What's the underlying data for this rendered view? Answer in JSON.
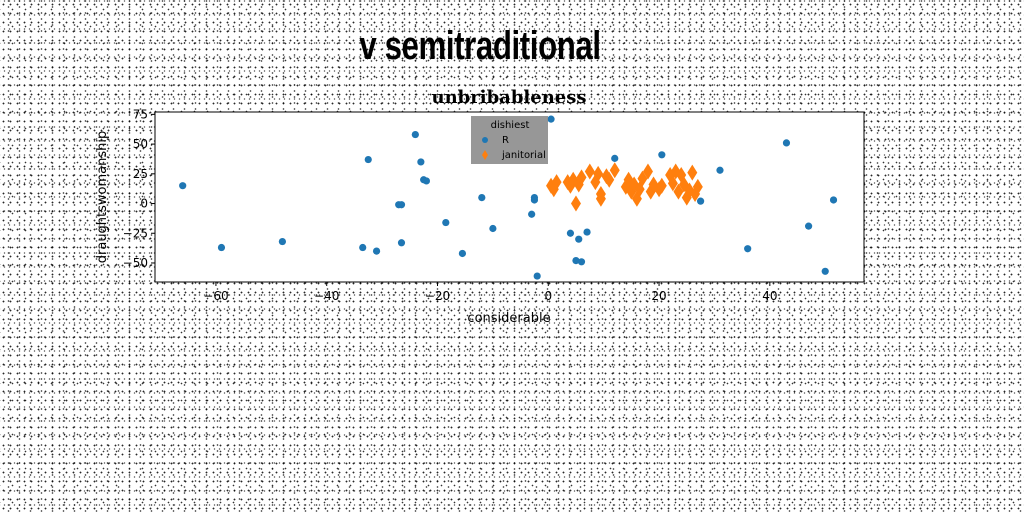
{
  "figure": {
    "suptitle": "v semitraditional"
  },
  "chart_data": {
    "type": "scatter",
    "title": "unbribableness",
    "xlabel": "considerable",
    "ylabel": "draughtswomanship",
    "xlim": [
      -71,
      57
    ],
    "ylim": [
      -66,
      77
    ],
    "xticks": [
      -60,
      -40,
      -20,
      0,
      20,
      40
    ],
    "yticks": [
      -50,
      -25,
      0,
      25,
      50,
      75
    ],
    "legend": {
      "title": "dishiest",
      "placement": "top-center",
      "background": "#8c8c8c"
    },
    "series": [
      {
        "name": "R",
        "marker": "circle",
        "color": "#1f77b4",
        "points": [
          [
            -66,
            15
          ],
          [
            -59,
            -37
          ],
          [
            -48,
            -32
          ],
          [
            -32.5,
            37
          ],
          [
            -33.5,
            -37
          ],
          [
            -31,
            -40
          ],
          [
            -27,
            -1
          ],
          [
            -26.5,
            -1
          ],
          [
            -26.5,
            -33
          ],
          [
            -24,
            58
          ],
          [
            -23,
            35
          ],
          [
            -22.5,
            20
          ],
          [
            -22,
            19
          ],
          [
            -18.5,
            -16
          ],
          [
            -15.5,
            -42
          ],
          [
            -12,
            5
          ],
          [
            -10,
            -21
          ],
          [
            -3,
            -9
          ],
          [
            -2.5,
            3
          ],
          [
            -2.5,
            5
          ],
          [
            -2,
            -61
          ],
          [
            0.5,
            71
          ],
          [
            4,
            -25
          ],
          [
            5,
            -48
          ],
          [
            5.5,
            -30
          ],
          [
            6,
            -49
          ],
          [
            7,
            -24
          ],
          [
            12,
            38
          ],
          [
            20.5,
            41
          ],
          [
            27.5,
            2
          ],
          [
            31,
            28
          ],
          [
            36,
            -38
          ],
          [
            43,
            51
          ],
          [
            47,
            -19
          ],
          [
            50,
            -57
          ],
          [
            51.5,
            3
          ]
        ]
      },
      {
        "name": "janitorial",
        "marker": "thin_diamond",
        "color": "#ff7f0e",
        "points": [
          [
            0.5,
            15
          ],
          [
            1,
            12
          ],
          [
            1.5,
            18
          ],
          [
            3.5,
            18
          ],
          [
            4,
            15
          ],
          [
            4.5,
            20
          ],
          [
            5,
            0
          ],
          [
            5.5,
            16
          ],
          [
            6,
            22
          ],
          [
            7.5,
            27
          ],
          [
            8.5,
            18
          ],
          [
            9,
            25
          ],
          [
            9.5,
            4
          ],
          [
            9.5,
            8
          ],
          [
            10.5,
            23
          ],
          [
            11,
            20
          ],
          [
            12,
            28
          ],
          [
            14,
            14
          ],
          [
            14.5,
            20
          ],
          [
            15,
            10
          ],
          [
            15.5,
            16
          ],
          [
            16,
            4
          ],
          [
            16.5,
            12
          ],
          [
            17,
            21
          ],
          [
            18,
            27
          ],
          [
            18.5,
            10
          ],
          [
            19,
            16
          ],
          [
            20,
            12
          ],
          [
            20.5,
            15
          ],
          [
            22,
            24
          ],
          [
            22.5,
            17
          ],
          [
            23,
            27
          ],
          [
            23.5,
            10
          ],
          [
            24,
            24
          ],
          [
            24.5,
            16
          ],
          [
            25,
            5
          ],
          [
            25.5,
            11
          ],
          [
            26,
            26
          ],
          [
            26.5,
            8
          ],
          [
            27,
            14
          ]
        ]
      }
    ]
  }
}
